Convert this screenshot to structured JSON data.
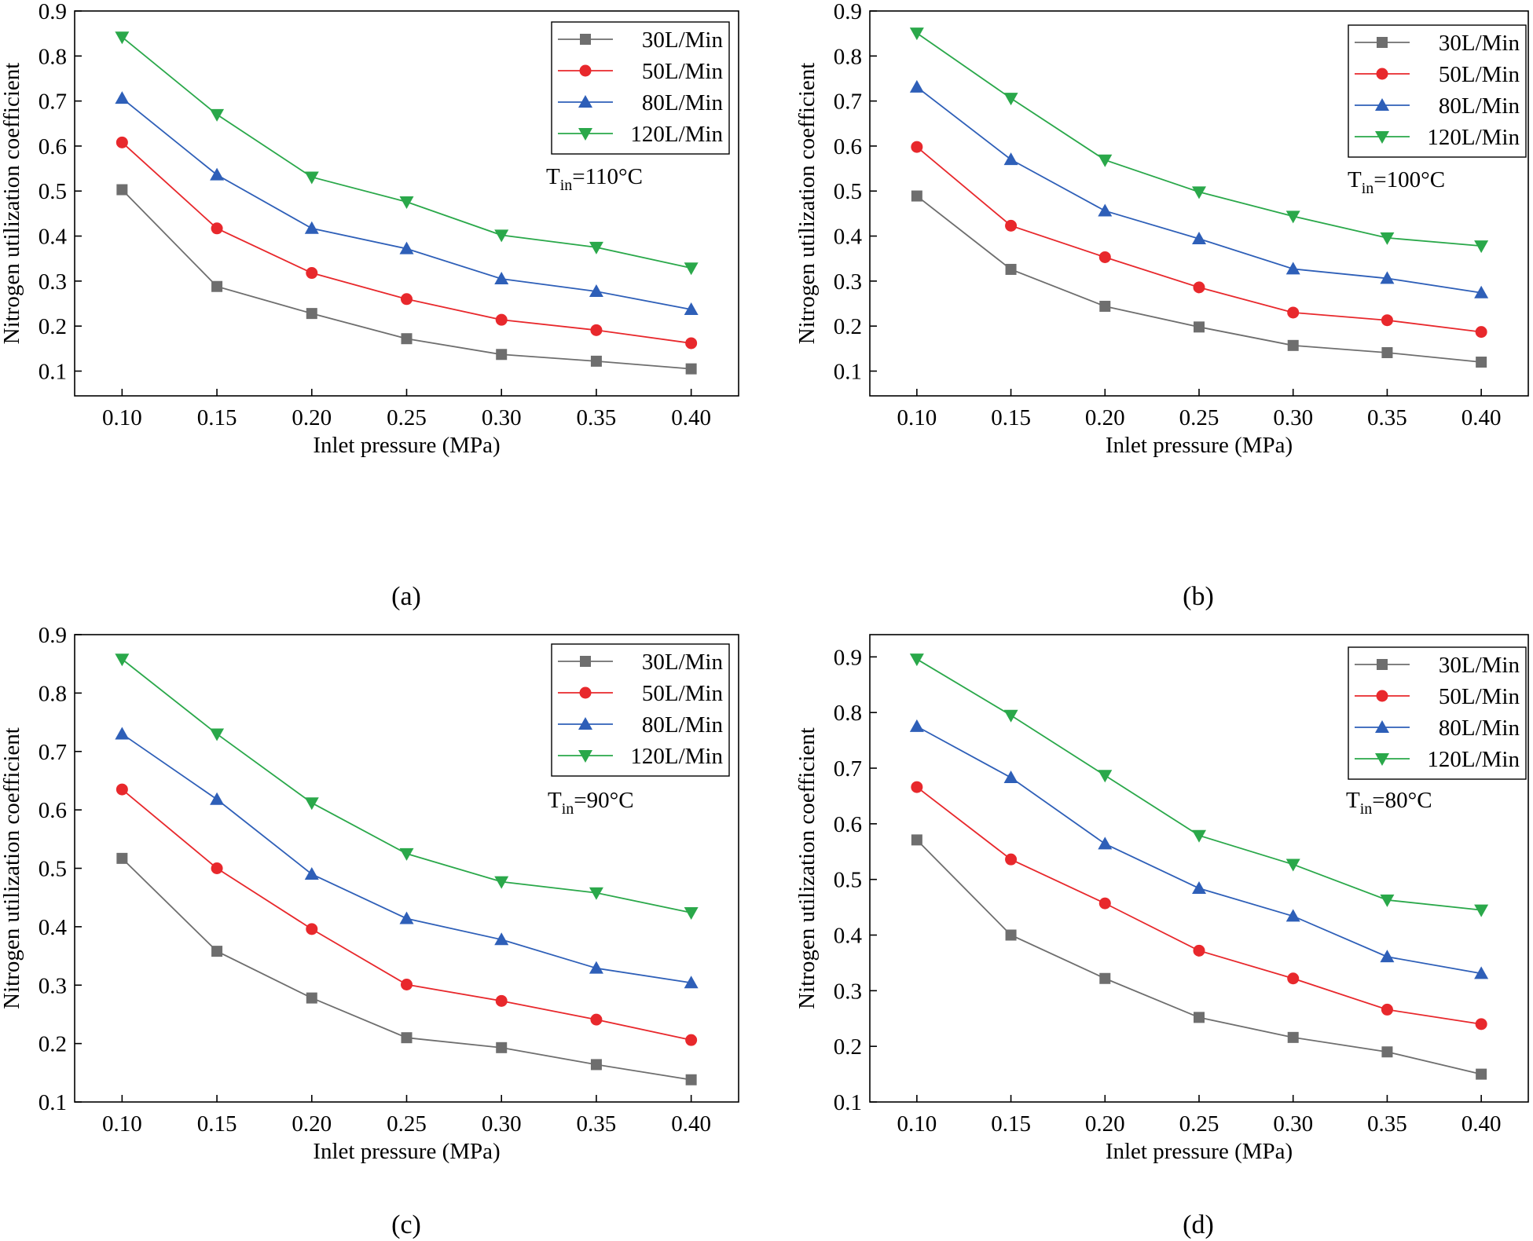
{
  "colors": {
    "30L/Min": "#6e6e6e",
    "50L/Min": "#e8282c",
    "80L/Min": "#2e5fb8",
    "120L/Min": "#2aa84a"
  },
  "markers": {
    "30L/Min": "square",
    "50L/Min": "circle",
    "80L/Min": "triangle-up",
    "120L/Min": "triangle-down"
  },
  "chart_data": [
    {
      "type": "line",
      "panel": "a",
      "caption": "(a)",
      "annotation": {
        "main": "T",
        "sub": "in",
        "rest": "=110°C"
      },
      "xlabel": "Inlet pressure (MPa)",
      "ylabel": "Nitrogen utilization coefficient",
      "x": [
        0.1,
        0.15,
        0.2,
        0.25,
        0.3,
        0.35,
        0.4
      ],
      "x_tick_labels": [
        "0.10",
        "0.15",
        "0.20",
        "0.25",
        "0.30",
        "0.35",
        "0.40"
      ],
      "y_ticks": [
        0.1,
        0.2,
        0.3,
        0.4,
        0.5,
        0.6,
        0.7,
        0.8,
        0.9
      ],
      "y_tick_labels": [
        "0.1",
        "0.2",
        "0.3",
        "0.4",
        "0.5",
        "0.6",
        "0.7",
        "0.8",
        "0.9"
      ],
      "xlim": [
        0.075,
        0.425
      ],
      "ylim": [
        0.045,
        0.9
      ],
      "legend_position": "top-right",
      "series": [
        {
          "name": "30L/Min",
          "values": [
            0.503,
            0.288,
            0.228,
            0.172,
            0.137,
            0.122,
            0.105
          ]
        },
        {
          "name": "50L/Min",
          "values": [
            0.608,
            0.417,
            0.318,
            0.26,
            0.214,
            0.191,
            0.162
          ]
        },
        {
          "name": "80L/Min",
          "values": [
            0.706,
            0.536,
            0.417,
            0.372,
            0.305,
            0.277,
            0.237
          ]
        },
        {
          "name": "120L/Min",
          "values": [
            0.842,
            0.67,
            0.531,
            0.476,
            0.402,
            0.375,
            0.329
          ]
        }
      ]
    },
    {
      "type": "line",
      "panel": "b",
      "caption": "(b)",
      "annotation": {
        "main": "T",
        "sub": "in",
        "rest": "=100°C"
      },
      "xlabel": "Inlet pressure (MPa)",
      "ylabel": "Nitrogen utilization coefficient",
      "x": [
        0.1,
        0.15,
        0.2,
        0.25,
        0.3,
        0.35,
        0.4
      ],
      "x_tick_labels": [
        "0.10",
        "0.15",
        "0.20",
        "0.25",
        "0.30",
        "0.35",
        "0.40"
      ],
      "y_ticks": [
        0.1,
        0.2,
        0.3,
        0.4,
        0.5,
        0.6,
        0.7,
        0.8,
        0.9
      ],
      "y_tick_labels": [
        "0.1",
        "0.2",
        "0.3",
        "0.4",
        "0.5",
        "0.6",
        "0.7",
        "0.8",
        "0.9"
      ],
      "xlim": [
        0.075,
        0.425
      ],
      "ylim": [
        0.045,
        0.9
      ],
      "legend_position": "top-right",
      "series": [
        {
          "name": "30L/Min",
          "values": [
            0.489,
            0.326,
            0.244,
            0.198,
            0.157,
            0.141,
            0.12
          ]
        },
        {
          "name": "50L/Min",
          "values": [
            0.598,
            0.423,
            0.353,
            0.286,
            0.23,
            0.213,
            0.187
          ]
        },
        {
          "name": "80L/Min",
          "values": [
            0.731,
            0.57,
            0.456,
            0.394,
            0.327,
            0.306,
            0.274
          ]
        },
        {
          "name": "120L/Min",
          "values": [
            0.851,
            0.706,
            0.569,
            0.498,
            0.444,
            0.396,
            0.378
          ]
        }
      ]
    },
    {
      "type": "line",
      "panel": "c",
      "caption": "(c)",
      "annotation": {
        "main": "T",
        "sub": "in",
        "rest": "=90°C"
      },
      "xlabel": "Inlet pressure (MPa)",
      "ylabel": "Nitrogen utilization coefficient",
      "x": [
        0.1,
        0.15,
        0.2,
        0.25,
        0.3,
        0.35,
        0.4
      ],
      "x_tick_labels": [
        "0.10",
        "0.15",
        "0.20",
        "0.25",
        "0.30",
        "0.35",
        "0.40"
      ],
      "y_ticks": [
        0.1,
        0.2,
        0.3,
        0.4,
        0.5,
        0.6,
        0.7,
        0.8,
        0.9
      ],
      "y_tick_labels": [
        "0.1",
        "0.2",
        "0.3",
        "0.4",
        "0.5",
        "0.6",
        "0.7",
        "0.8",
        "0.9"
      ],
      "xlim": [
        0.075,
        0.425
      ],
      "ylim": [
        0.1,
        0.9
      ],
      "legend_position": "top-right",
      "series": [
        {
          "name": "30L/Min",
          "values": [
            0.517,
            0.358,
            0.278,
            0.21,
            0.193,
            0.164,
            0.138
          ]
        },
        {
          "name": "50L/Min",
          "values": [
            0.635,
            0.5,
            0.396,
            0.301,
            0.273,
            0.241,
            0.206
          ]
        },
        {
          "name": "80L/Min",
          "values": [
            0.73,
            0.618,
            0.49,
            0.414,
            0.378,
            0.329,
            0.304
          ]
        },
        {
          "name": "120L/Min",
          "values": [
            0.858,
            0.73,
            0.612,
            0.525,
            0.477,
            0.458,
            0.424
          ]
        }
      ]
    },
    {
      "type": "line",
      "panel": "d",
      "caption": "(d)",
      "annotation": {
        "main": "T",
        "sub": "in",
        "rest": "=80°C"
      },
      "xlabel": "Inlet pressure (MPa)",
      "ylabel": "Nitrogen utilization coefficient",
      "x": [
        0.1,
        0.15,
        0.2,
        0.25,
        0.3,
        0.35,
        0.4
      ],
      "x_tick_labels": [
        "0.10",
        "0.15",
        "0.20",
        "0.25",
        "0.30",
        "0.35",
        "0.40"
      ],
      "y_ticks": [
        0.1,
        0.2,
        0.3,
        0.4,
        0.5,
        0.6,
        0.7,
        0.8,
        0.9
      ],
      "y_tick_labels": [
        "0.1",
        "0.2",
        "0.3",
        "0.4",
        "0.5",
        "0.6",
        "0.7",
        "0.8",
        "0.9"
      ],
      "xlim": [
        0.075,
        0.425
      ],
      "ylim": [
        0.1,
        0.94
      ],
      "legend_position": "top-right",
      "series": [
        {
          "name": "30L/Min",
          "values": [
            0.571,
            0.4,
            0.322,
            0.252,
            0.216,
            0.19,
            0.15
          ]
        },
        {
          "name": "50L/Min",
          "values": [
            0.666,
            0.536,
            0.457,
            0.372,
            0.322,
            0.266,
            0.24
          ]
        },
        {
          "name": "80L/Min",
          "values": [
            0.775,
            0.683,
            0.564,
            0.484,
            0.434,
            0.361,
            0.331
          ]
        },
        {
          "name": "120L/Min",
          "values": [
            0.896,
            0.795,
            0.687,
            0.579,
            0.527,
            0.463,
            0.445
          ]
        }
      ]
    }
  ]
}
